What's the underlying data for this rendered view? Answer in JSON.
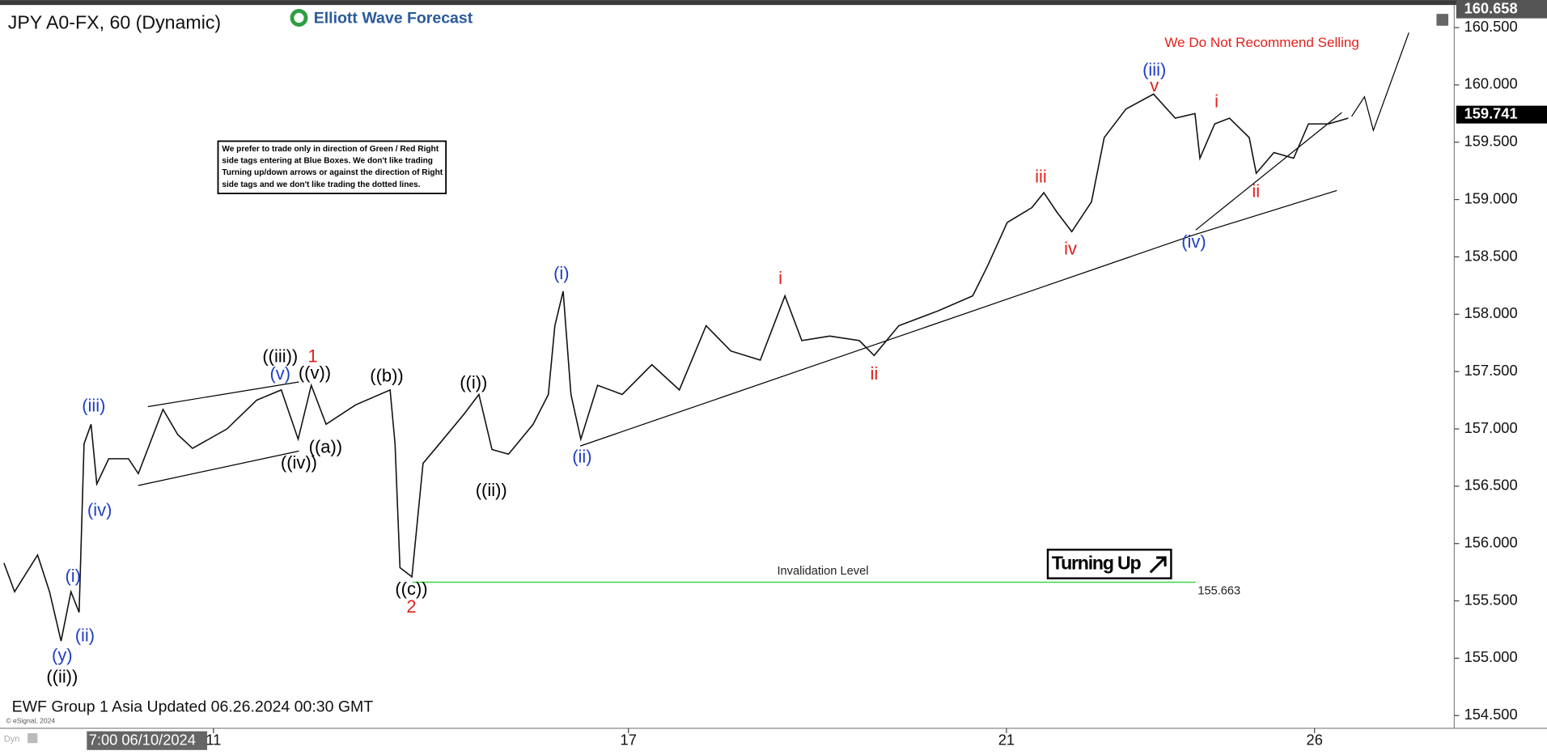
{
  "chart_data": {
    "type": "line",
    "title": "JPY A0-FX, 60 (Dynamic)",
    "brand": "Elliott Wave Forecast",
    "footer": "EWF Group 1 Asia Updated 06.26.2024 00:30 GMT",
    "copyright": "© eSignal, 2024",
    "mode_label": "Dyn",
    "x_cursor_label": "7:00 06/10/2024",
    "notice": [
      "We prefer to trade only in direction of Green / Red Right",
      "side tags entering at Blue Boxes. We don't like trading",
      "Turning up/down arrows or against the direction of Right",
      "side tags and we don't like trading the dotted lines."
    ],
    "warning": "We Do Not Recommend Selling",
    "signal": "Turning Up",
    "invalidation_label": "Invalidation Level",
    "invalidation_level": 155.663,
    "last_price": 159.741,
    "high_price": 160.658,
    "color": "#111111",
    "x": [
      0,
      2.6,
      8.2,
      11.1,
      13.9,
      16.3,
      18.3,
      19.5,
      21.2,
      22.6,
      25.5,
      30.3,
      32.7,
      38.7,
      42.3,
      45.9,
      54.3,
      61.5,
      67.5,
      71.6,
      74.8,
      78.4,
      85.6,
      94,
      95.2,
      96.4,
      99.3,
      102,
      106,
      112,
      115.6,
      118.8,
      122.8,
      128.8,
      132.5,
      134.1,
      136.1,
      138,
      140.4,
      144.5,
      150.5,
      157.7,
      164.4,
      170.9,
      176.9,
      184.1,
      190.1,
      194.2,
      201,
      208.2,
      211.8,
      217.8,
      227.4,
      235.8,
      239.4,
      244.2,
      250.2,
      253.1,
      256.3,
      259.9,
      264.7,
      267.8,
      273.1,
      279.8,
      285.1,
      289.9,
      291.1,
      294.7,
      298.3,
      303.1,
      304.8,
      309.1,
      313.9,
      317.5,
      322.4,
      327.2
    ],
    "values": [
      155.83,
      155.58,
      155.9,
      155.58,
      155.15,
      155.58,
      155.4,
      156.87,
      157.04,
      156.52,
      156.74,
      156.74,
      156.61,
      157.17,
      156.95,
      156.83,
      157.0,
      157.25,
      157.34,
      156.91,
      157.38,
      157.04,
      157.21,
      157.34,
      156.87,
      155.79,
      155.71,
      156.7,
      156.87,
      157.13,
      157.3,
      156.82,
      156.78,
      157.04,
      157.3,
      157.9,
      158.2,
      157.3,
      156.91,
      157.38,
      157.3,
      157.56,
      157.34,
      157.9,
      157.68,
      157.6,
      158.16,
      157.77,
      157.81,
      157.77,
      157.64,
      157.9,
      158.03,
      158.16,
      158.42,
      158.8,
      158.93,
      159.06,
      158.89,
      158.72,
      158.98,
      159.54,
      159.79,
      159.92,
      159.71,
      159.75,
      159.36,
      159.66,
      159.71,
      159.54,
      159.23,
      159.41,
      159.36,
      159.66,
      159.66,
      159.71
    ],
    "xlim": [
      0,
      353
    ],
    "xticks": [
      {
        "value": 51,
        "label": "11"
      },
      {
        "value": 152,
        "label": "17"
      },
      {
        "value": 244,
        "label": "21"
      },
      {
        "value": 319,
        "label": "26"
      }
    ],
    "ylim": [
      154.389,
      160.671
    ],
    "yticks": [
      {
        "value": 154.5,
        "label": "154.500"
      },
      {
        "value": 155,
        "label": "155.000"
      },
      {
        "value": 155.5,
        "label": "155.500"
      },
      {
        "value": 156,
        "label": "156.000"
      },
      {
        "value": 156.5,
        "label": "156.500"
      },
      {
        "value": 157,
        "label": "157.000"
      },
      {
        "value": 157.5,
        "label": "157.500"
      },
      {
        "value": 158,
        "label": "158.000"
      },
      {
        "value": 158.5,
        "label": "158.500"
      },
      {
        "value": 159,
        "label": "159.000"
      },
      {
        "value": 159.5,
        "label": "159.500"
      },
      {
        "value": 160,
        "label": "160.000"
      },
      {
        "value": 160.5,
        "label": "160.500"
      }
    ],
    "wave_labels": [
      {
        "text": "((ii))",
        "color": "#000000"
      },
      {
        "text": "(y)",
        "color": "#1f3fc4"
      },
      {
        "text": "(ii)",
        "color": "#1f3fc4"
      },
      {
        "text": "(i)",
        "color": "#1f3fc4"
      },
      {
        "text": "(iv)",
        "color": "#1f3fc4"
      },
      {
        "text": "(iii)",
        "color": "#1f3fc4"
      },
      {
        "text": "((iii))",
        "color": "#000000"
      },
      {
        "text": "(v)",
        "color": "#1f3fc4"
      },
      {
        "text": "1",
        "color": "#e0201c"
      },
      {
        "text": "((v))",
        "color": "#000000"
      },
      {
        "text": "((iv))",
        "color": "#000000"
      },
      {
        "text": "((a))",
        "color": "#000000"
      },
      {
        "text": "((b))",
        "color": "#000000"
      },
      {
        "text": "((c))",
        "color": "#000000"
      },
      {
        "text": "2",
        "color": "#e0201c"
      },
      {
        "text": "((i))",
        "color": "#000000"
      },
      {
        "text": "((ii))",
        "color": "#000000"
      },
      {
        "text": "(i)",
        "color": "#1f3fc4"
      },
      {
        "text": "(ii)",
        "color": "#1f3fc4"
      },
      {
        "text": "i",
        "color": "#e0201c"
      },
      {
        "text": "ii",
        "color": "#e0201c"
      },
      {
        "text": "iii",
        "color": "#e0201c"
      },
      {
        "text": "iv",
        "color": "#e0201c"
      },
      {
        "text": "(iii)",
        "color": "#1f3fc4"
      },
      {
        "text": "v",
        "color": "#e0201c"
      },
      {
        "text": "(iv)",
        "color": "#1f3fc4"
      },
      {
        "text": "i",
        "color": "#e0201c"
      },
      {
        "text": "ii",
        "color": "#e0201c"
      }
    ]
  }
}
